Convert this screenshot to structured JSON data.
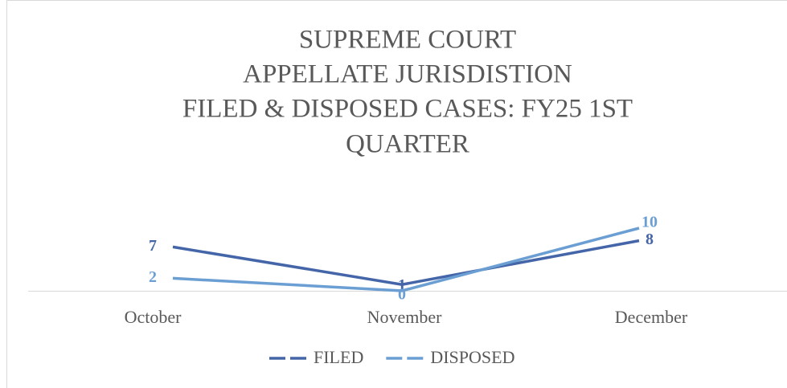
{
  "chart_data": {
    "type": "line",
    "title": [
      "SUPREME COURT",
      "APPELLATE JURISDISTION",
      "FILED & DISPOSED CASES: FY25 1ST",
      "QUARTER"
    ],
    "categories": [
      "October",
      "November",
      "December"
    ],
    "series": [
      {
        "name": "FILED",
        "color": "#4466a8",
        "values": [
          7,
          1,
          8
        ]
      },
      {
        "name": "DISPOSED",
        "color": "#6b9fd3",
        "values": [
          2,
          0,
          10
        ]
      }
    ],
    "legend": "bottom"
  }
}
